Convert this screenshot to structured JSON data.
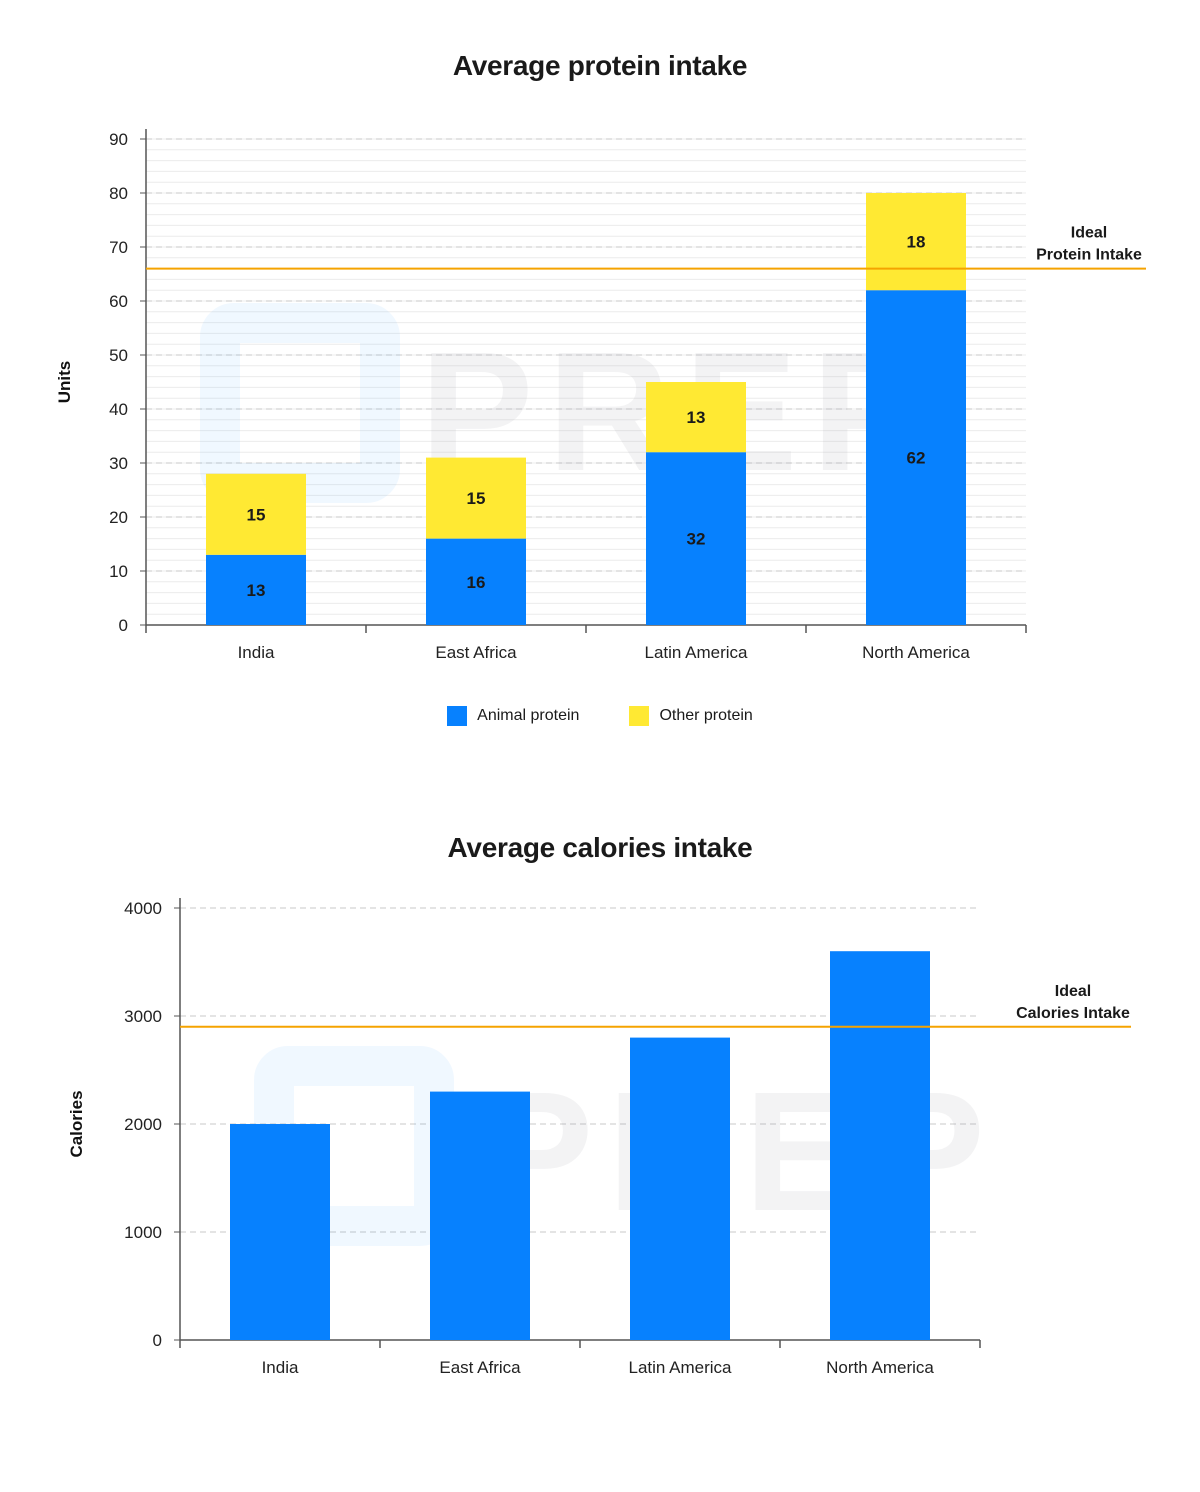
{
  "colors": {
    "animal": "#0781fe",
    "other": "#ffe933",
    "ideal_line": "#f5a300",
    "grid": "#c8c8c8",
    "axis": "#555555"
  },
  "watermark_text": "PREP",
  "chart_data": [
    {
      "type": "bar",
      "stacked": true,
      "title": "Average protein intake",
      "xlabel": "",
      "ylabel": "Units",
      "ylim": [
        0,
        90
      ],
      "yticks": [
        0,
        10,
        20,
        30,
        40,
        50,
        60,
        70,
        80,
        90
      ],
      "categories": [
        "India",
        "East Africa",
        "Latin America",
        "North America"
      ],
      "series": [
        {
          "name": "Animal protein",
          "color": "#0781fe",
          "values": [
            13,
            16,
            32,
            62
          ],
          "labels": [
            "13",
            "16",
            "32",
            "62"
          ]
        },
        {
          "name": "Other protein",
          "color": "#ffe933",
          "values": [
            15,
            15,
            13,
            18
          ],
          "labels": [
            "15",
            "15",
            "13",
            "18"
          ]
        }
      ],
      "reference_line": {
        "value": 66,
        "label_line1": "Ideal",
        "label_line2": "Protein Intake"
      },
      "legend": "bottom-center",
      "grid": true
    },
    {
      "type": "bar",
      "stacked": false,
      "title": "Average calories intake",
      "xlabel": "",
      "ylabel": "Calories",
      "ylim": [
        0,
        4000
      ],
      "yticks": [
        0,
        1000,
        2000,
        3000,
        4000
      ],
      "categories": [
        "India",
        "East Africa",
        "Latin America",
        "North America"
      ],
      "series": [
        {
          "color": "#0781fe",
          "values": [
            2000,
            2300,
            2800,
            3600
          ]
        }
      ],
      "reference_line": {
        "value": 2900,
        "label_line1": "Ideal",
        "label_line2": "Calories Intake"
      },
      "grid": true
    }
  ]
}
